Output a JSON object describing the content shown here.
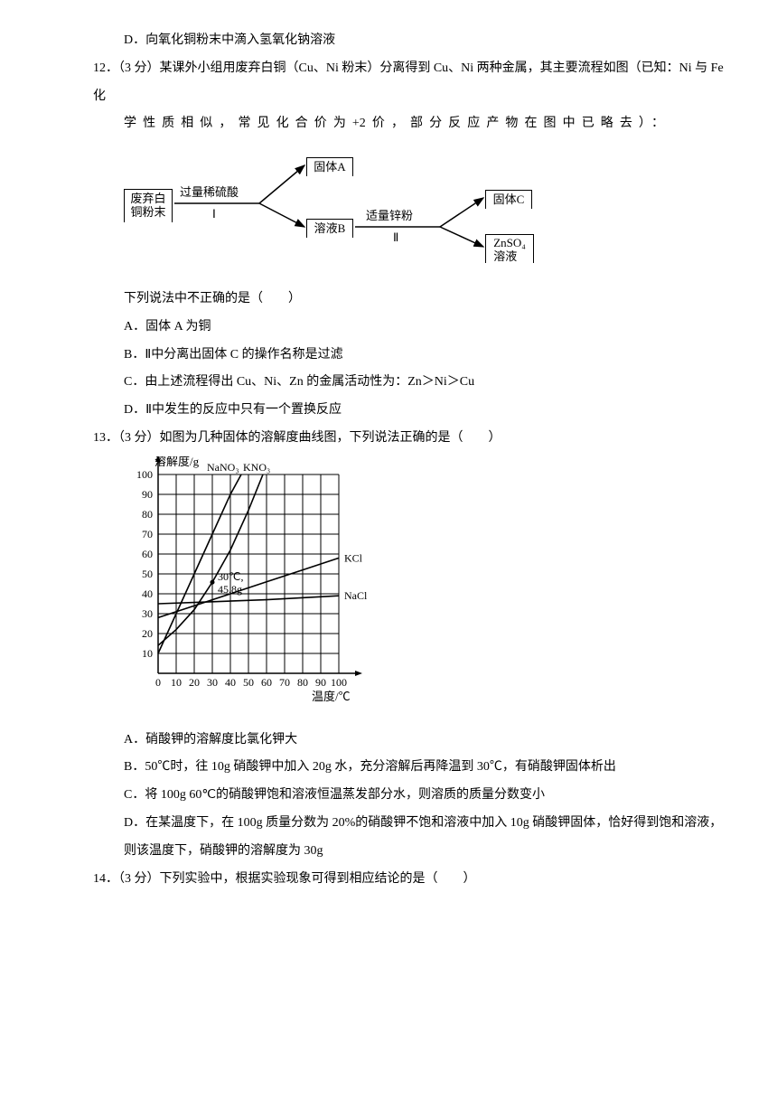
{
  "q11": {
    "optD": "D．向氧化铜粉末中滴入氢氧化钠溶液"
  },
  "q12": {
    "number": "12．（3 分）",
    "stem_part1": "某课外小组用废弃白铜（Cu、Ni 粉末）分离得到 Cu、Ni 两种金属，其主要流程如图（已知：Ni 与 Fe 化",
    "stem_part2": "学性质相似，常见化合价为+2价，部分反应产物在图中已略去）：",
    "post_diagram": "下列说法中不正确的是（　　）",
    "optA": "A．固体 A 为铜",
    "optB": "B．Ⅱ中分离出固体 C 的操作名称是过滤",
    "optC": "C．由上述流程得出 Cu、Ni、Zn 的金属活动性为：Zn＞Ni＞Cu",
    "optD": "D．Ⅱ中发生的反应中只有一个置换反应",
    "flow": {
      "start_l1": "废弃白",
      "start_l2": "铜粉末",
      "step1_top": "过量稀硫酸",
      "step1_bot": "Ⅰ",
      "solidA": "固体A",
      "solB": "溶液B",
      "step2_top": "适量锌粉",
      "step2_bot": "Ⅱ",
      "solidC": "固体C",
      "znso4_l1": "ZnSO₄",
      "znso4_l2": "溶液"
    }
  },
  "q13": {
    "number": "13．（3 分）",
    "stem": "如图为几种固体的溶解度曲线图，下列说法正确的是（　　）",
    "optA": "A．硝酸钾的溶解度比氯化钾大",
    "optB": "B．50℃时，往 10g 硝酸钾中加入 20g 水，充分溶解后再降温到 30℃，有硝酸钾固体析出",
    "optC": "C．将 100g 60℃的硝酸钾饱和溶液恒温蒸发部分水，则溶质的质量分数变小",
    "optD": "D．在某温度下，在 100g 质量分数为 20%的硝酸钾不饱和溶液中加入 10g 硝酸钾固体，恰好得到饱和溶液，则该温度下，硝酸钾的溶解度为 30g",
    "chart": {
      "y_label": "溶解度/g",
      "x_label": "温度/℃",
      "y_ticks": [
        "10",
        "20",
        "30",
        "40",
        "50",
        "60",
        "70",
        "80",
        "90",
        "100"
      ],
      "x_ticks": [
        "0",
        "10",
        "20",
        "30",
        "40",
        "50",
        "60",
        "70",
        "80",
        "90",
        "100"
      ],
      "point_label_l1": "30℃,",
      "point_label_l2": "45.8g",
      "curves": {
        "NaNO3": "NaNO₃",
        "KNO3": "KNO₃",
        "KCl": "KCl",
        "NaCl": "NaCl"
      },
      "grid_color": "#000000",
      "bg": "#ffffff"
    }
  },
  "q14": {
    "number": "14．（3 分）",
    "stem": "下列实验中，根据实验现象可得到相应结论的是（　　）"
  }
}
